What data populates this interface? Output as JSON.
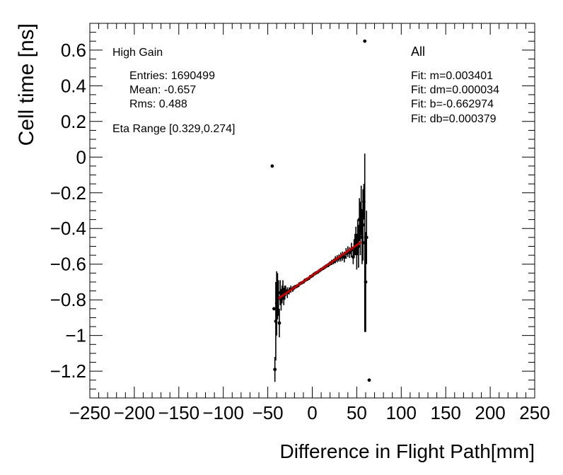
{
  "chart_data": {
    "type": "scatter",
    "title": "",
    "xlabel": "Difference in Flight Path[mm]",
    "ylabel": "Cell time [ns]",
    "xlim": [
      -250,
      250
    ],
    "ylim": [
      -1.35,
      0.75
    ],
    "x_ticks": [
      -250,
      -200,
      -150,
      -100,
      -50,
      0,
      50,
      100,
      150,
      200,
      250
    ],
    "x_tick_labels": [
      "−250",
      "−200",
      "−150",
      "−100",
      "−50",
      "0",
      "50",
      "100",
      "150",
      "200",
      "250"
    ],
    "y_ticks": [
      0.6,
      0.4,
      0.2,
      0,
      -0.2,
      -0.4,
      -0.6,
      -0.8,
      -1,
      -1.2
    ],
    "y_tick_labels": [
      "0.6",
      "0.4",
      "0.2",
      "0",
      "−0.2",
      "−0.4",
      "−0.6",
      "−0.8",
      "−1",
      "−1.2"
    ],
    "annotations_left": {
      "gain": "High Gain",
      "entries": "Entries: 1690499",
      "mean": "Mean: -0.657",
      "rms": "Rms: 0.488",
      "eta_range": "Eta Range [0.329,0.274]"
    },
    "annotations_right": {
      "label": "All",
      "fit_m": "Fit: m=0.003401",
      "fit_dm": "Fit: dm=0.000034",
      "fit_b": "Fit: b=-0.662974",
      "fit_db": "Fit: db=0.000379"
    },
    "fit_line": {
      "slope": 0.003401,
      "intercept": -0.662974,
      "x_range": [
        -38,
        55
      ],
      "color": "#cc0000"
    },
    "series": [
      {
        "name": "data",
        "points": [
          {
            "x": -45,
            "y": -0.05,
            "err": 0
          },
          {
            "x": -43,
            "y": -0.85,
            "err": 0
          },
          {
            "x": 59,
            "y": 0.65,
            "err": 0
          },
          {
            "x": 64,
            "y": -1.25,
            "err": 0
          },
          {
            "x": -42,
            "y": -1.19,
            "err": 0.07
          },
          {
            "x": -41,
            "y": -0.92,
            "err": 0.22
          },
          {
            "x": -40,
            "y": -0.82,
            "err": 0.18
          },
          {
            "x": -39,
            "y": -0.78,
            "err": 0.13
          },
          {
            "x": -38,
            "y": -0.79,
            "err": 0.1
          },
          {
            "x": -37,
            "y": -0.93,
            "err": 0.08
          },
          {
            "x": -36,
            "y": -0.76,
            "err": 0.07
          },
          {
            "x": -35,
            "y": -0.8,
            "err": 0.06
          },
          {
            "x": -34,
            "y": -0.77,
            "err": 0.05
          },
          {
            "x": -33,
            "y": -0.74,
            "err": 0.05
          },
          {
            "x": -32,
            "y": -0.79,
            "err": 0.04
          },
          {
            "x": -31,
            "y": -0.76,
            "err": 0.04
          },
          {
            "x": -30,
            "y": -0.75,
            "err": 0.03
          },
          {
            "x": -28,
            "y": -0.76,
            "err": 0.03
          },
          {
            "x": -26,
            "y": -0.75,
            "err": 0.02
          },
          {
            "x": -24,
            "y": -0.74,
            "err": 0.02
          },
          {
            "x": -22,
            "y": -0.74,
            "err": 0.015
          },
          {
            "x": -20,
            "y": -0.73,
            "err": 0.012
          },
          {
            "x": -18,
            "y": -0.725,
            "err": 0.01
          },
          {
            "x": -16,
            "y": -0.72,
            "err": 0.01
          },
          {
            "x": -14,
            "y": -0.71,
            "err": 0.008
          },
          {
            "x": -12,
            "y": -0.705,
            "err": 0.008
          },
          {
            "x": -10,
            "y": -0.7,
            "err": 0.007
          },
          {
            "x": -8,
            "y": -0.69,
            "err": 0.006
          },
          {
            "x": -6,
            "y": -0.685,
            "err": 0.006
          },
          {
            "x": -4,
            "y": -0.68,
            "err": 0.006
          },
          {
            "x": -2,
            "y": -0.67,
            "err": 0.006
          },
          {
            "x": 0,
            "y": -0.665,
            "err": 0.006
          },
          {
            "x": 2,
            "y": -0.656,
            "err": 0.006
          },
          {
            "x": 4,
            "y": -0.65,
            "err": 0.007
          },
          {
            "x": 6,
            "y": -0.645,
            "err": 0.007
          },
          {
            "x": 8,
            "y": -0.637,
            "err": 0.008
          },
          {
            "x": 10,
            "y": -0.63,
            "err": 0.008
          },
          {
            "x": 12,
            "y": -0.624,
            "err": 0.009
          },
          {
            "x": 14,
            "y": -0.617,
            "err": 0.01
          },
          {
            "x": 16,
            "y": -0.61,
            "err": 0.01
          },
          {
            "x": 18,
            "y": -0.605,
            "err": 0.012
          },
          {
            "x": 20,
            "y": -0.596,
            "err": 0.012
          },
          {
            "x": 22,
            "y": -0.59,
            "err": 0.015
          },
          {
            "x": 24,
            "y": -0.585,
            "err": 0.015
          },
          {
            "x": 26,
            "y": -0.575,
            "err": 0.02
          },
          {
            "x": 28,
            "y": -0.57,
            "err": 0.02
          },
          {
            "x": 30,
            "y": -0.565,
            "err": 0.02
          },
          {
            "x": 32,
            "y": -0.56,
            "err": 0.025
          },
          {
            "x": 34,
            "y": -0.555,
            "err": 0.025
          },
          {
            "x": 36,
            "y": -0.56,
            "err": 0.03
          },
          {
            "x": 38,
            "y": -0.54,
            "err": 0.03
          },
          {
            "x": 40,
            "y": -0.53,
            "err": 0.03
          },
          {
            "x": 42,
            "y": -0.535,
            "err": 0.03
          },
          {
            "x": 44,
            "y": -0.52,
            "err": 0.04
          },
          {
            "x": 46,
            "y": -0.56,
            "err": 0.04
          },
          {
            "x": 47,
            "y": -0.51,
            "err": 0.05
          },
          {
            "x": 48,
            "y": -0.49,
            "err": 0.06
          },
          {
            "x": 49,
            "y": -0.47,
            "err": 0.08
          },
          {
            "x": 50,
            "y": -0.53,
            "err": 0.1
          },
          {
            "x": 51,
            "y": -0.45,
            "err": 0.1
          },
          {
            "x": 52,
            "y": -0.5,
            "err": 0.12
          },
          {
            "x": 53,
            "y": -0.35,
            "err": 0.12
          },
          {
            "x": 54,
            "y": -0.4,
            "err": 0.15
          },
          {
            "x": 55,
            "y": -0.3,
            "err": 0.14
          },
          {
            "x": 56,
            "y": -0.45,
            "err": 0.15
          },
          {
            "x": 57,
            "y": -0.38,
            "err": 0.2
          },
          {
            "x": 58,
            "y": -0.25,
            "err": 0.1
          },
          {
            "x": 59,
            "y": -0.48,
            "err": 0.5
          },
          {
            "x": 60,
            "y": -0.7,
            "err": 0.28
          },
          {
            "x": 61,
            "y": -0.45,
            "err": 0.15
          }
        ]
      }
    ]
  }
}
